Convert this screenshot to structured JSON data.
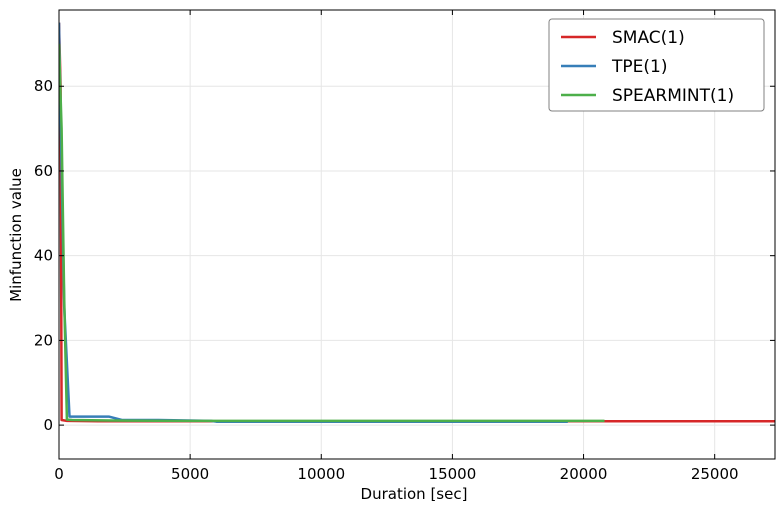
{
  "chart_data": {
    "type": "line",
    "title": "",
    "xlabel": "Duration [sec]",
    "ylabel": "Minfunction value",
    "xlim": [
      0,
      27300
    ],
    "ylim": [
      -8,
      98
    ],
    "xticks": [
      0,
      5000,
      10000,
      15000,
      20000,
      25000
    ],
    "yticks": [
      0,
      20,
      40,
      60,
      80
    ],
    "grid": true,
    "legend_position": "top-right",
    "series": [
      {
        "name": "SMAC(1)",
        "color": "#d62728",
        "x": [
          0,
          60,
          100,
          300,
          1500,
          3000,
          6000,
          10000,
          15000,
          20000,
          25000,
          27300
        ],
        "y": [
          95,
          80,
          1.2,
          1.0,
          0.9,
          0.9,
          0.9,
          0.9,
          0.9,
          0.9,
          0.9,
          0.9
        ]
      },
      {
        "name": "TPE(1)",
        "color": "#377eb8",
        "x": [
          0,
          100,
          200,
          400,
          1900,
          2400,
          3800,
          5800,
          6000,
          10000,
          15000,
          19400
        ],
        "y": [
          95,
          60,
          28,
          2.0,
          2.0,
          1.2,
          1.2,
          1.0,
          0.8,
          0.8,
          0.8,
          0.8
        ]
      },
      {
        "name": "SPEARMINT(1)",
        "color": "#4daf4a",
        "x": [
          0,
          100,
          200,
          300,
          500,
          2000,
          5000,
          10000,
          15000,
          20800
        ],
        "y": [
          90,
          70,
          30,
          1.3,
          1.2,
          1.1,
          1.0,
          1.0,
          1.0,
          1.0
        ]
      }
    ]
  }
}
